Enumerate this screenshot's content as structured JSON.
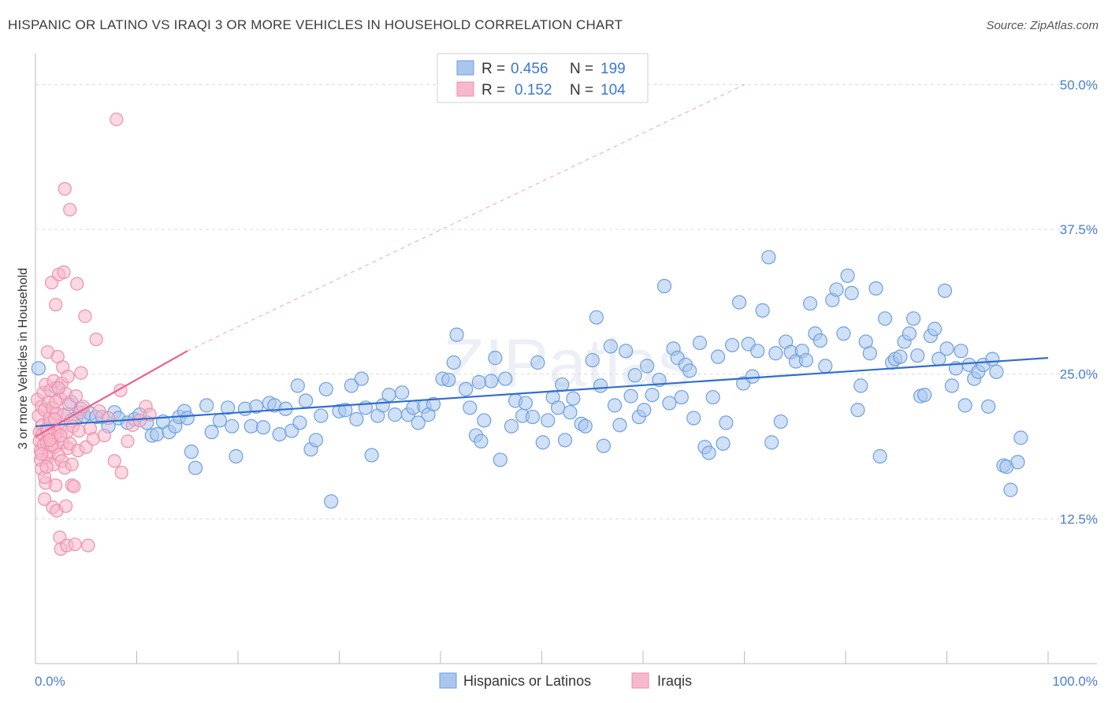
{
  "title": "HISPANIC OR LATINO VS IRAQI 3 OR MORE VEHICLES IN HOUSEHOLD CORRELATION CHART",
  "source": "Source: ZipAtlas.com",
  "watermark": "ZIPatlas",
  "colors": {
    "blue_fill": "#a9c6ef",
    "blue_stroke": "#6e9fe0",
    "blue_line": "#2f6fd0",
    "pink_fill": "#f7b8cb",
    "pink_stroke": "#ee8fad",
    "pink_line": "#e8628f",
    "grid": "#d9d9d9",
    "tick_text": "#4a7fd0"
  },
  "legend": {
    "r_label": "R =",
    "n_label": "N =",
    "entries": [
      {
        "r": "0.456",
        "n": "199"
      },
      {
        "r": "0.152",
        "n": "104"
      }
    ]
  },
  "bottom_legend": [
    "Hispanics or Latinos",
    "Iraqis"
  ],
  "chart_data": {
    "type": "scatter",
    "title": "HISPANIC OR LATINO VS IRAQI 3 OR MORE VEHICLES IN HOUSEHOLD CORRELATION CHART",
    "xlabel": "",
    "ylabel": "3 or more Vehicles in Household",
    "xlim": [
      0,
      100
    ],
    "ylim": [
      0,
      52
    ],
    "x_tick_labels": [
      "0.0%",
      "100.0%"
    ],
    "y_ticks": [
      12.5,
      25.0,
      37.5,
      50.0
    ],
    "y_tick_labels": [
      "12.5%",
      "25.0%",
      "37.5%",
      "50.0%"
    ],
    "grid": true,
    "legend_position": "top-center",
    "series": [
      {
        "name": "Hispanics or Latinos",
        "r": 0.456,
        "n": 199,
        "trend": {
          "x0": 0,
          "y0": 20.5,
          "x1": 100,
          "y1": 26.4
        },
        "points": [
          [
            0.3,
            25.5
          ],
          [
            2.1,
            23.8
          ],
          [
            3.2,
            21.5
          ],
          [
            3.5,
            22.6
          ],
          [
            4.0,
            21.2
          ],
          [
            4.5,
            22.0
          ],
          [
            4.8,
            21.4
          ],
          [
            5.4,
            21.6
          ],
          [
            6.0,
            21.3
          ],
          [
            6.6,
            21.3
          ],
          [
            7.2,
            20.5
          ],
          [
            7.8,
            21.7
          ],
          [
            8.2,
            21.2
          ],
          [
            9.1,
            20.8
          ],
          [
            9.8,
            21.1
          ],
          [
            10.3,
            21.5
          ],
          [
            11.0,
            20.8
          ],
          [
            11.5,
            19.7
          ],
          [
            12.0,
            19.8
          ],
          [
            12.6,
            20.9
          ],
          [
            13.2,
            20.0
          ],
          [
            13.8,
            20.5
          ],
          [
            14.2,
            21.3
          ],
          [
            14.7,
            21.8
          ],
          [
            15.4,
            18.3
          ],
          [
            15.8,
            16.9
          ],
          [
            16.9,
            22.3
          ],
          [
            17.4,
            20.0
          ],
          [
            18.2,
            21.0
          ],
          [
            19.0,
            22.1
          ],
          [
            19.4,
            20.5
          ],
          [
            19.8,
            17.9
          ],
          [
            20.7,
            22.0
          ],
          [
            21.3,
            20.5
          ],
          [
            21.8,
            22.2
          ],
          [
            22.5,
            20.4
          ],
          [
            23.1,
            22.5
          ],
          [
            23.6,
            22.3
          ],
          [
            24.1,
            19.8
          ],
          [
            24.7,
            22.0
          ],
          [
            25.3,
            20.1
          ],
          [
            25.9,
            24.0
          ],
          [
            26.1,
            20.8
          ],
          [
            26.7,
            22.7
          ],
          [
            27.2,
            18.5
          ],
          [
            27.7,
            19.3
          ],
          [
            28.2,
            21.4
          ],
          [
            28.7,
            23.7
          ],
          [
            29.2,
            14.0
          ],
          [
            30.0,
            21.8
          ],
          [
            30.6,
            21.9
          ],
          [
            31.2,
            24.0
          ],
          [
            31.7,
            21.1
          ],
          [
            32.2,
            24.6
          ],
          [
            32.6,
            22.1
          ],
          [
            33.2,
            18.0
          ],
          [
            33.8,
            21.4
          ],
          [
            34.3,
            22.3
          ],
          [
            34.9,
            23.2
          ],
          [
            35.5,
            21.5
          ],
          [
            36.2,
            23.4
          ],
          [
            36.8,
            21.5
          ],
          [
            37.3,
            22.1
          ],
          [
            37.8,
            20.8
          ],
          [
            38.4,
            22.2
          ],
          [
            38.8,
            21.5
          ],
          [
            39.3,
            22.4
          ],
          [
            40.2,
            24.6
          ],
          [
            40.8,
            24.5
          ],
          [
            41.3,
            26.0
          ],
          [
            41.6,
            28.4
          ],
          [
            42.5,
            23.7
          ],
          [
            42.9,
            22.1
          ],
          [
            43.5,
            19.7
          ],
          [
            44.0,
            19.2
          ],
          [
            44.3,
            21.0
          ],
          [
            45.0,
            24.4
          ],
          [
            45.4,
            26.4
          ],
          [
            45.9,
            17.6
          ],
          [
            46.4,
            24.6
          ],
          [
            47.0,
            20.5
          ],
          [
            47.4,
            22.7
          ],
          [
            48.1,
            21.4
          ],
          [
            48.4,
            22.5
          ],
          [
            49.1,
            21.3
          ],
          [
            49.6,
            26.0
          ],
          [
            50.1,
            19.1
          ],
          [
            50.6,
            21.0
          ],
          [
            51.1,
            23.0
          ],
          [
            51.6,
            22.1
          ],
          [
            52.0,
            24.1
          ],
          [
            52.3,
            19.3
          ],
          [
            52.8,
            21.7
          ],
          [
            53.1,
            22.9
          ],
          [
            53.9,
            20.7
          ],
          [
            54.3,
            20.5
          ],
          [
            55.0,
            26.2
          ],
          [
            55.4,
            29.9
          ],
          [
            55.8,
            24.0
          ],
          [
            56.1,
            18.8
          ],
          [
            56.8,
            27.4
          ],
          [
            57.2,
            22.3
          ],
          [
            57.7,
            20.6
          ],
          [
            58.3,
            27.0
          ],
          [
            58.8,
            23.1
          ],
          [
            59.2,
            24.9
          ],
          [
            59.6,
            21.3
          ],
          [
            60.1,
            21.9
          ],
          [
            60.4,
            25.7
          ],
          [
            60.9,
            23.2
          ],
          [
            61.6,
            24.5
          ],
          [
            62.1,
            32.6
          ],
          [
            62.6,
            22.5
          ],
          [
            63.0,
            27.2
          ],
          [
            63.4,
            26.4
          ],
          [
            63.8,
            23.0
          ],
          [
            64.2,
            25.8
          ],
          [
            64.6,
            25.3
          ],
          [
            65.0,
            21.2
          ],
          [
            65.6,
            27.7
          ],
          [
            66.1,
            18.7
          ],
          [
            66.5,
            18.2
          ],
          [
            66.9,
            23.0
          ],
          [
            67.4,
            26.5
          ],
          [
            67.9,
            19.0
          ],
          [
            68.2,
            20.8
          ],
          [
            68.8,
            27.5
          ],
          [
            69.5,
            31.2
          ],
          [
            69.9,
            24.2
          ],
          [
            70.4,
            27.6
          ],
          [
            70.8,
            24.8
          ],
          [
            71.3,
            27.0
          ],
          [
            71.8,
            30.5
          ],
          [
            72.4,
            35.1
          ],
          [
            72.7,
            19.1
          ],
          [
            73.1,
            26.8
          ],
          [
            73.6,
            20.9
          ],
          [
            74.1,
            27.8
          ],
          [
            74.6,
            26.9
          ],
          [
            75.1,
            26.1
          ],
          [
            75.7,
            27.0
          ],
          [
            76.1,
            26.2
          ],
          [
            76.5,
            31.1
          ],
          [
            77.0,
            28.5
          ],
          [
            77.5,
            27.9
          ],
          [
            78.0,
            25.7
          ],
          [
            78.7,
            31.4
          ],
          [
            79.1,
            32.3
          ],
          [
            79.8,
            28.5
          ],
          [
            80.2,
            33.5
          ],
          [
            80.6,
            32.0
          ],
          [
            81.2,
            21.9
          ],
          [
            81.5,
            24.0
          ],
          [
            82.0,
            27.8
          ],
          [
            82.4,
            26.8
          ],
          [
            83.0,
            32.4
          ],
          [
            83.4,
            17.9
          ],
          [
            83.9,
            29.8
          ],
          [
            84.6,
            26.0
          ],
          [
            84.9,
            26.3
          ],
          [
            85.4,
            26.5
          ],
          [
            85.8,
            27.8
          ],
          [
            86.3,
            28.5
          ],
          [
            86.7,
            29.8
          ],
          [
            87.1,
            26.6
          ],
          [
            87.4,
            23.1
          ],
          [
            87.8,
            23.2
          ],
          [
            88.4,
            28.3
          ],
          [
            88.8,
            28.9
          ],
          [
            89.2,
            26.3
          ],
          [
            89.8,
            32.2
          ],
          [
            90.0,
            27.2
          ],
          [
            90.5,
            24.0
          ],
          [
            90.9,
            25.5
          ],
          [
            91.4,
            27.0
          ],
          [
            91.8,
            22.3
          ],
          [
            92.2,
            25.8
          ],
          [
            92.7,
            24.6
          ],
          [
            93.1,
            25.2
          ],
          [
            93.6,
            25.8
          ],
          [
            94.1,
            22.2
          ],
          [
            94.5,
            26.3
          ],
          [
            94.9,
            25.2
          ],
          [
            95.6,
            17.1
          ],
          [
            95.9,
            17.0
          ],
          [
            96.3,
            15.0
          ],
          [
            97.0,
            17.4
          ],
          [
            97.3,
            19.5
          ],
          [
            43.8,
            24.3
          ],
          [
            15.0,
            21.2
          ]
        ]
      },
      {
        "name": "Iraqis",
        "r": 0.152,
        "n": 104,
        "trend": {
          "x0": 0,
          "y0": 19.6,
          "x1": 15.0,
          "y1": 27.0
        },
        "trend_extension": {
          "x0": 15.0,
          "y0": 27.0,
          "x1": 70.0,
          "y1": 50.0
        },
        "points": [
          [
            0.2,
            22.8
          ],
          [
            0.3,
            21.4
          ],
          [
            0.4,
            20.0
          ],
          [
            0.4,
            19.2
          ],
          [
            0.5,
            18.4
          ],
          [
            0.5,
            17.6
          ],
          [
            0.6,
            16.8
          ],
          [
            0.6,
            22.2
          ],
          [
            0.7,
            20.6
          ],
          [
            0.7,
            19.8
          ],
          [
            0.8,
            23.4
          ],
          [
            0.8,
            18.9
          ],
          [
            0.9,
            21.9
          ],
          [
            0.9,
            14.2
          ],
          [
            1.0,
            15.6
          ],
          [
            1.0,
            24.1
          ],
          [
            1.1,
            20.3
          ],
          [
            1.1,
            19.1
          ],
          [
            1.2,
            26.9
          ],
          [
            1.2,
            17.8
          ],
          [
            1.3,
            22.6
          ],
          [
            1.3,
            19.6
          ],
          [
            1.4,
            21.2
          ],
          [
            1.4,
            18.3
          ],
          [
            1.5,
            23.6
          ],
          [
            1.5,
            20.8
          ],
          [
            1.6,
            32.9
          ],
          [
            1.6,
            19.4
          ],
          [
            1.7,
            13.5
          ],
          [
            1.7,
            22.1
          ],
          [
            1.8,
            17.2
          ],
          [
            1.8,
            24.4
          ],
          [
            1.9,
            20.2
          ],
          [
            1.9,
            18.7
          ],
          [
            2.0,
            31.0
          ],
          [
            2.0,
            15.4
          ],
          [
            2.1,
            21.6
          ],
          [
            2.1,
            13.2
          ],
          [
            2.2,
            26.5
          ],
          [
            2.2,
            19.9
          ],
          [
            2.3,
            33.6
          ],
          [
            2.3,
            18.0
          ],
          [
            2.4,
            22.9
          ],
          [
            2.4,
            10.9
          ],
          [
            2.5,
            20.4
          ],
          [
            2.5,
            9.9
          ],
          [
            2.6,
            24.2
          ],
          [
            2.6,
            17.5
          ],
          [
            2.7,
            25.6
          ],
          [
            2.7,
            19.1
          ],
          [
            2.8,
            33.8
          ],
          [
            2.8,
            21.5
          ],
          [
            2.9,
            41.0
          ],
          [
            2.9,
            16.9
          ],
          [
            3.0,
            23.3
          ],
          [
            3.0,
            13.6
          ],
          [
            3.1,
            20.0
          ],
          [
            3.1,
            10.2
          ],
          [
            3.2,
            24.8
          ],
          [
            3.2,
            18.6
          ],
          [
            3.3,
            22.4
          ],
          [
            3.4,
            39.2
          ],
          [
            3.4,
            19.0
          ],
          [
            3.5,
            21.0
          ],
          [
            3.6,
            15.4
          ],
          [
            3.6,
            17.2
          ],
          [
            3.7,
            20.5
          ],
          [
            3.8,
            15.3
          ],
          [
            3.9,
            10.3
          ],
          [
            4.0,
            23.1
          ],
          [
            4.1,
            32.8
          ],
          [
            4.2,
            18.4
          ],
          [
            4.3,
            20.1
          ],
          [
            4.4,
            21.7
          ],
          [
            4.5,
            25.1
          ],
          [
            4.7,
            22.2
          ],
          [
            4.9,
            30.0
          ],
          [
            5.0,
            18.7
          ],
          [
            5.2,
            10.2
          ],
          [
            5.4,
            20.3
          ],
          [
            5.7,
            19.4
          ],
          [
            6.0,
            28.0
          ],
          [
            6.3,
            21.8
          ],
          [
            6.8,
            19.7
          ],
          [
            7.2,
            21.2
          ],
          [
            7.8,
            17.5
          ],
          [
            8.0,
            47.0
          ],
          [
            8.4,
            23.6
          ],
          [
            8.5,
            16.5
          ],
          [
            9.1,
            19.2
          ],
          [
            9.6,
            20.6
          ],
          [
            10.3,
            21.0
          ],
          [
            10.9,
            22.2
          ],
          [
            11.3,
            21.5
          ],
          [
            1.2,
            20.1
          ],
          [
            1.6,
            18.9
          ],
          [
            2.0,
            22.6
          ],
          [
            0.9,
            16.1
          ],
          [
            1.4,
            19.3
          ],
          [
            1.9,
            21.1
          ],
          [
            2.3,
            23.8
          ],
          [
            0.6,
            18.1
          ],
          [
            1.1,
            17.0
          ],
          [
            2.5,
            19.7
          ]
        ]
      }
    ]
  }
}
